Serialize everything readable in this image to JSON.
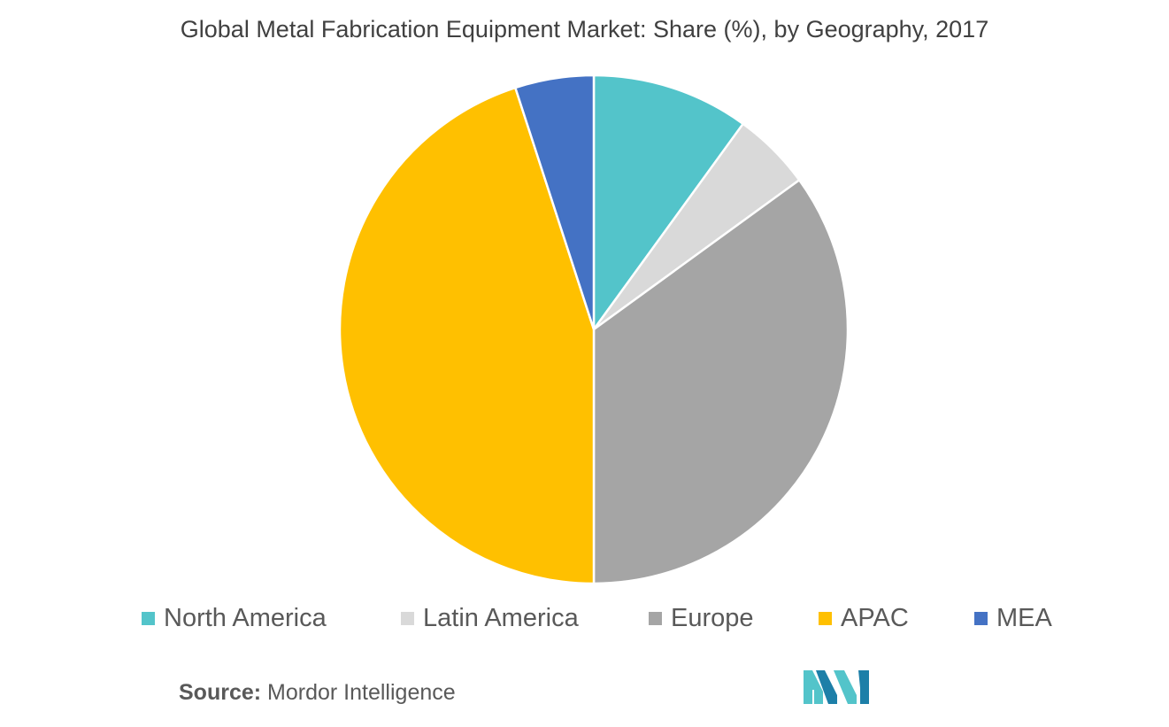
{
  "chart_data": {
    "type": "pie",
    "title": "Global Metal Fabrication Equipment Market: Share (%), by Geography, 2017",
    "start": "12 o'clock, clockwise",
    "slices": [
      {
        "name": "North America",
        "value": 10,
        "color": "#53C4CA"
      },
      {
        "name": "Latin America",
        "value": 5,
        "color": "#D9D9D9"
      },
      {
        "name": "Europe",
        "value": 35,
        "color": "#A5A5A5"
      },
      {
        "name": "APAC",
        "value": 45,
        "color": "#FFC000"
      },
      {
        "name": "MEA",
        "value": 5,
        "color": "#4472C4"
      }
    ],
    "legend_position": "bottom"
  },
  "source": {
    "label": "Source:",
    "text": " Mordor Intelligence"
  },
  "logo": {
    "icon": "mordor-intelligence-logo",
    "colors": [
      "#53C4CA",
      "#1D7FA8"
    ]
  }
}
